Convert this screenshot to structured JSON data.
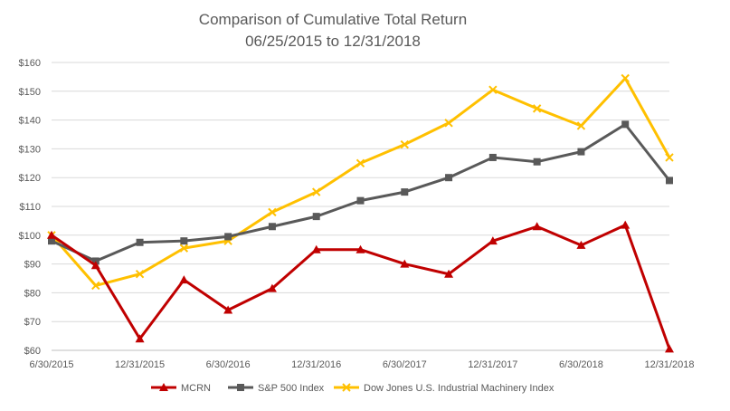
{
  "chart_data": {
    "type": "line",
    "title": "Comparison of Cumulative Total Return",
    "subtitle": "06/25/2015 to 12/31/2018",
    "xlabel": "",
    "ylabel": "",
    "x": [
      "6/30/2015",
      "9/30/2015",
      "12/31/2015",
      "3/31/2016",
      "6/30/2016",
      "9/30/2016",
      "12/31/2016",
      "3/31/2017",
      "6/30/2017",
      "9/30/2017",
      "12/31/2017",
      "3/31/2018",
      "6/30/2018",
      "9/30/2018",
      "12/31/2018"
    ],
    "x_tick_labels": [
      "6/30/2015",
      "12/31/2015",
      "6/30/2016",
      "12/31/2016",
      "6/30/2017",
      "12/31/2017",
      "6/30/2018",
      "12/31/2018"
    ],
    "x_tick_indices": [
      0,
      2,
      4,
      6,
      8,
      10,
      12,
      14
    ],
    "ylim": [
      60,
      160
    ],
    "y_ticks": [
      60,
      70,
      80,
      90,
      100,
      110,
      120,
      130,
      140,
      150,
      160
    ],
    "y_tick_labels": [
      "$60",
      "$70",
      "$80",
      "$90",
      "$100",
      "$110",
      "$120",
      "$130",
      "$140",
      "$150",
      "$160"
    ],
    "grid": true,
    "legend_position": "bottom",
    "series": [
      {
        "name": "MCRN",
        "color": "#C00000",
        "marker": "triangle",
        "values": [
          100,
          89.5,
          64,
          84.5,
          74,
          81.5,
          95,
          95,
          90,
          86.5,
          98,
          103,
          96.5,
          103.5,
          60.5
        ]
      },
      {
        "name": "S&P 500 Index",
        "color": "#595959",
        "marker": "square",
        "values": [
          98,
          91,
          97.5,
          98,
          99.5,
          103,
          106.5,
          112,
          115,
          120,
          127,
          125.5,
          129,
          138.5,
          119
        ]
      },
      {
        "name": "Dow Jones U.S. Industrial Machinery Index",
        "color": "#FFC000",
        "marker": "x",
        "values": [
          100,
          82.5,
          86.5,
          95.5,
          98,
          108,
          115,
          125,
          131.5,
          139,
          150.5,
          144,
          138,
          154.5,
          127
        ]
      }
    ]
  }
}
